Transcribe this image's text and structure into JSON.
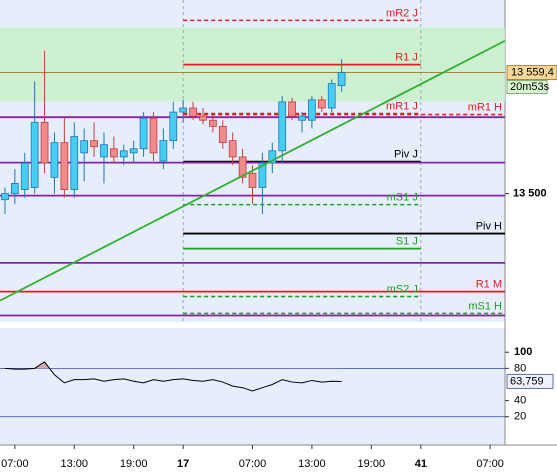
{
  "chart_data": [
    {
      "type": "candlestick",
      "x": [
        -1,
        0,
        1,
        2,
        3,
        4,
        5,
        6,
        7,
        8,
        9,
        10,
        11,
        12,
        13,
        14,
        15,
        16,
        17,
        18,
        19,
        20,
        21,
        22,
        23,
        24,
        25,
        26,
        27,
        28,
        29,
        30,
        31,
        32,
        33
      ],
      "open": [
        13497,
        13500,
        13502,
        13503,
        13535,
        13508,
        13525,
        13502,
        13520,
        13526,
        13518,
        13522,
        13518,
        13520,
        13522,
        13537,
        13516,
        13526,
        13540,
        13542,
        13538,
        13536,
        13533,
        13526,
        13518,
        13510,
        13503,
        13515,
        13521,
        13545,
        13536,
        13536,
        13546,
        13542,
        13553
      ],
      "high": [
        13503,
        13512,
        13520,
        13555,
        13570,
        13530,
        13538,
        13535,
        13532,
        13535,
        13530,
        13528,
        13524,
        13526,
        13540,
        13540,
        13532,
        13545,
        13546,
        13545,
        13542,
        13539,
        13536,
        13530,
        13522,
        13514,
        13520,
        13525,
        13548,
        13547,
        13540,
        13548,
        13548,
        13556,
        13566
      ],
      "low": [
        13490,
        13495,
        13498,
        13500,
        13510,
        13500,
        13498,
        13498,
        13506,
        13518,
        13505,
        13515,
        13514,
        13515,
        13518,
        13516,
        13512,
        13522,
        13535,
        13536,
        13534,
        13530,
        13522,
        13514,
        13505,
        13495,
        13490,
        13510,
        13515,
        13536,
        13530,
        13532,
        13540,
        13540,
        13550
      ],
      "close": [
        13500,
        13505,
        13515,
        13535,
        13515,
        13525,
        13502,
        13528,
        13526,
        13523,
        13524,
        13518,
        13521,
        13522,
        13537,
        13520,
        13526,
        13540,
        13542,
        13538,
        13536,
        13533,
        13525,
        13518,
        13508,
        13503,
        13515,
        13521,
        13545,
        13538,
        13538,
        13546,
        13542,
        13554,
        13559.4
      ],
      "up_color": "#48cdf2",
      "down_color": "#f28a8a",
      "xlim": [
        -1.5,
        49.5
      ],
      "xticks": [
        {
          "value": 0,
          "label": "07:00"
        },
        {
          "value": 6,
          "label": "13:00"
        },
        {
          "value": 12,
          "label": "19:00"
        },
        17,
        {
          "value": 24,
          "label": "07:00"
        },
        {
          "value": 30,
          "label": "13:00"
        },
        {
          "value": 36,
          "label": "19:00"
        },
        41,
        {
          "value": 48,
          "label": "07:00"
        }
      ],
      "ylim": [
        13437,
        13595
      ],
      "yticks": [
        {
          "value": 13500,
          "label": "13 500"
        }
      ],
      "last_price": {
        "value": 13559.4,
        "label": "13 559,4"
      },
      "countdown": "20m53s",
      "band": {
        "from": 13545.2,
        "to": 13581.5,
        "color": "#c8f0c8"
      },
      "trendline": {
        "x": [
          -1.5,
          49.5
        ],
        "y": [
          13447.5,
          13575
        ],
        "color": "#30b030"
      },
      "levels": [
        {
          "label": "mR2 J",
          "value": 13585,
          "color": "#e02020",
          "dash": true,
          "x_from": 17,
          "x_to": 41
        },
        {
          "label": "R1 J",
          "value": 13563.3,
          "color": "#e02020",
          "dash": false,
          "x_from": 17,
          "x_to": 41
        },
        {
          "label": "mR1 J",
          "value": 13539.3,
          "color": "#e02020",
          "dash": true,
          "x_from": 17,
          "x_to": 41
        },
        {
          "label": "mR1 H",
          "value": 13538.8,
          "color": "#e02020",
          "dash": true,
          "x_from": 17,
          "x_to": 49.5
        },
        {
          "value": 13537.5,
          "color": "#8a20a8",
          "dash": false,
          "x_from": -1.5,
          "x_to": 49.5
        },
        {
          "label": "Piv J",
          "value": 13515.7,
          "color": "#000000",
          "dash": false,
          "x_from": 17,
          "x_to": 41
        },
        {
          "value": 13515.2,
          "color": "#8a20a8",
          "dash": false,
          "x_from": -1.5,
          "x_to": 49.5
        },
        {
          "value": 13499,
          "color": "#8a20a8",
          "dash": false,
          "x_from": -1.5,
          "x_to": 49.5
        },
        {
          "label": "mS1 J",
          "value": 13494.6,
          "color": "#20a020",
          "dash": true,
          "x_from": 17,
          "x_to": 41
        },
        {
          "label": "Piv H",
          "value": 13480.4,
          "color": "#000000",
          "dash": false,
          "x_from": 17,
          "x_to": 49.5
        },
        {
          "label": "S1 J",
          "value": 13473,
          "color": "#20a020",
          "dash": false,
          "x_from": 17,
          "x_to": 41
        },
        {
          "value": 13466,
          "color": "#8a20a8",
          "dash": false,
          "x_from": -1.5,
          "x_to": 49.5
        },
        {
          "label": "R1 M",
          "value": 13451.9,
          "color": "#e02020",
          "dash": false,
          "x_from": -1.5,
          "x_to": 49.5
        },
        {
          "label": "mS2 J",
          "value": 13449.5,
          "color": "#20a020",
          "dash": true,
          "x_from": 17,
          "x_to": 41
        },
        {
          "label": "mS1 H",
          "value": 13441.2,
          "color": "#20a020",
          "dash": true,
          "x_from": 17,
          "x_to": 49.5
        },
        {
          "value": 13440.2,
          "color": "#8a20a8",
          "dash": false,
          "x_from": -1.5,
          "x_to": 49.5
        }
      ]
    },
    {
      "type": "line",
      "series": [
        {
          "color": "#000000",
          "values": [
            80,
            79,
            79,
            80,
            88,
            72,
            62,
            66,
            66,
            67,
            64,
            66,
            67,
            64,
            62,
            66,
            64,
            66,
            67,
            65,
            64,
            66,
            63,
            58,
            56,
            52,
            56,
            60,
            66,
            63,
            62,
            65,
            63,
            64,
            63.759
          ]
        }
      ],
      "last_label": "63,759",
      "ylim": [
        -15,
        130
      ],
      "yticks": [
        100,
        80,
        40,
        20
      ],
      "levels": [
        80,
        20
      ],
      "level_color": "#3040a0",
      "overbought_fill": "#d8a8b0"
    }
  ]
}
